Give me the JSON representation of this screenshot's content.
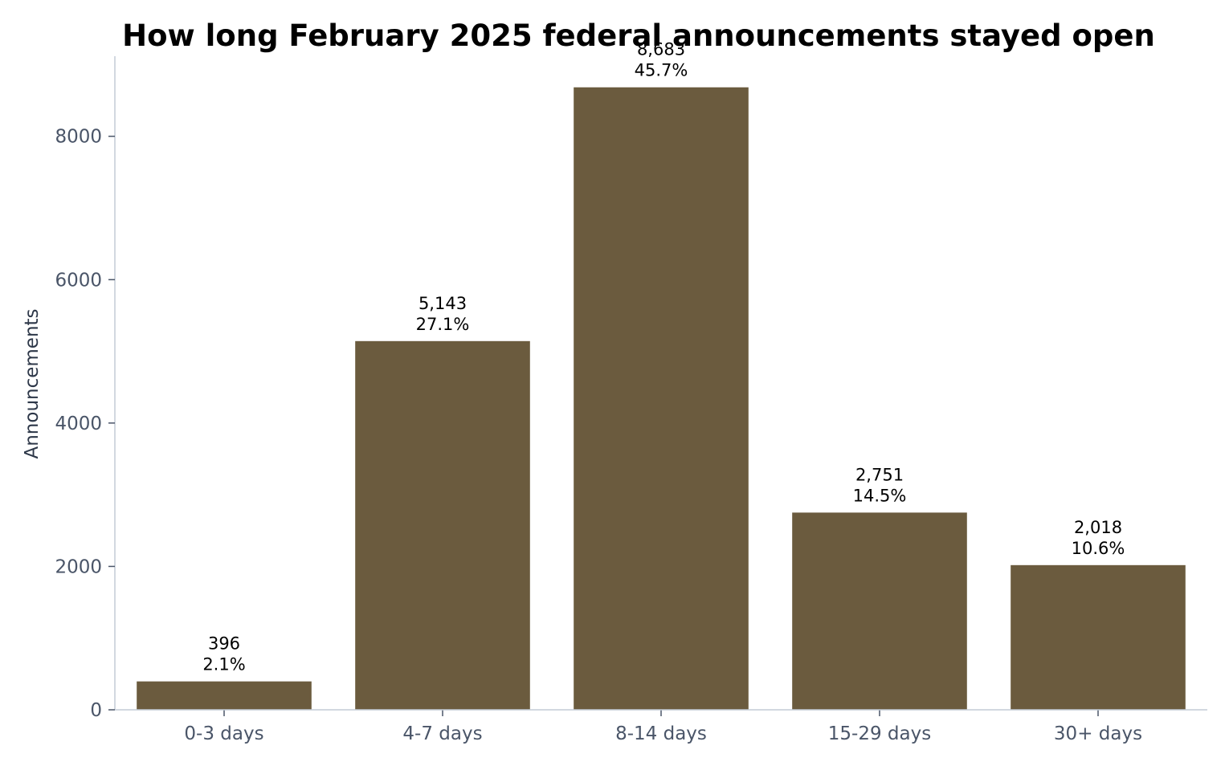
{
  "chart_data": {
    "type": "bar",
    "title": "How long February 2025 federal announcements stayed open",
    "xlabel": "",
    "ylabel": "Announcements",
    "categories": [
      "0-3 days",
      "4-7 days",
      "8-14 days",
      "15-29 days",
      "30+ days"
    ],
    "values": [
      396,
      5143,
      8683,
      2751,
      2018
    ],
    "value_labels": [
      "396",
      "5,143",
      "8,683",
      "2,751",
      "2,018"
    ],
    "percent_labels": [
      "2.1%",
      "27.1%",
      "45.7%",
      "14.5%",
      "10.6%"
    ],
    "yticks": [
      0,
      2000,
      4000,
      6000,
      8000
    ],
    "ylim": [
      0,
      9117
    ],
    "grid": false,
    "legend": "none",
    "colors": {
      "bar": "#6b5b3e",
      "axis": "#c3ccd6",
      "tick_text": "#4a5568"
    }
  }
}
